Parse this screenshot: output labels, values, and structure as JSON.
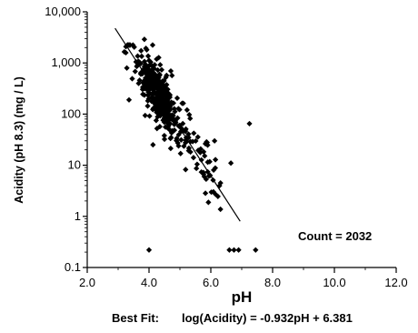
{
  "chart_data": {
    "type": "scatter",
    "xlabel": "pH",
    "ylabel": "Acidity (pH 8.3) (mg / L)",
    "x_ticks": [
      "2.0",
      "4.0",
      "6.0",
      "8.0",
      "10.0",
      "12.0"
    ],
    "y_ticks": [
      "0.1",
      "1",
      "10",
      "100",
      "1,000",
      "10,000"
    ],
    "xlim": [
      2.0,
      12.0
    ],
    "ylim": [
      0.1,
      10000
    ],
    "y_scale": "log",
    "grid": false,
    "count_label": "Count = 2032",
    "best_fit_label": "Best Fit:",
    "best_fit_equation": "log(Acidity) = -0.932pH + 6.381",
    "best_fit": {
      "slope": -0.932,
      "intercept": 6.381,
      "x_range": [
        2.9,
        6.95
      ]
    },
    "outliers": [
      {
        "x": 4.0,
        "y": 0.22
      },
      {
        "x": 6.6,
        "y": 0.22
      },
      {
        "x": 6.75,
        "y": 0.22
      },
      {
        "x": 6.9,
        "y": 0.22
      },
      {
        "x": 7.45,
        "y": 0.22
      },
      {
        "x": 7.25,
        "y": 65
      },
      {
        "x": 3.85,
        "y": 2900
      },
      {
        "x": 6.65,
        "y": 11
      }
    ],
    "cluster": {
      "n": 420,
      "x_range": [
        3.2,
        6.35
      ],
      "scatter_sd_log": 0.28,
      "seed": 7
    },
    "marker_color": "#000000"
  }
}
